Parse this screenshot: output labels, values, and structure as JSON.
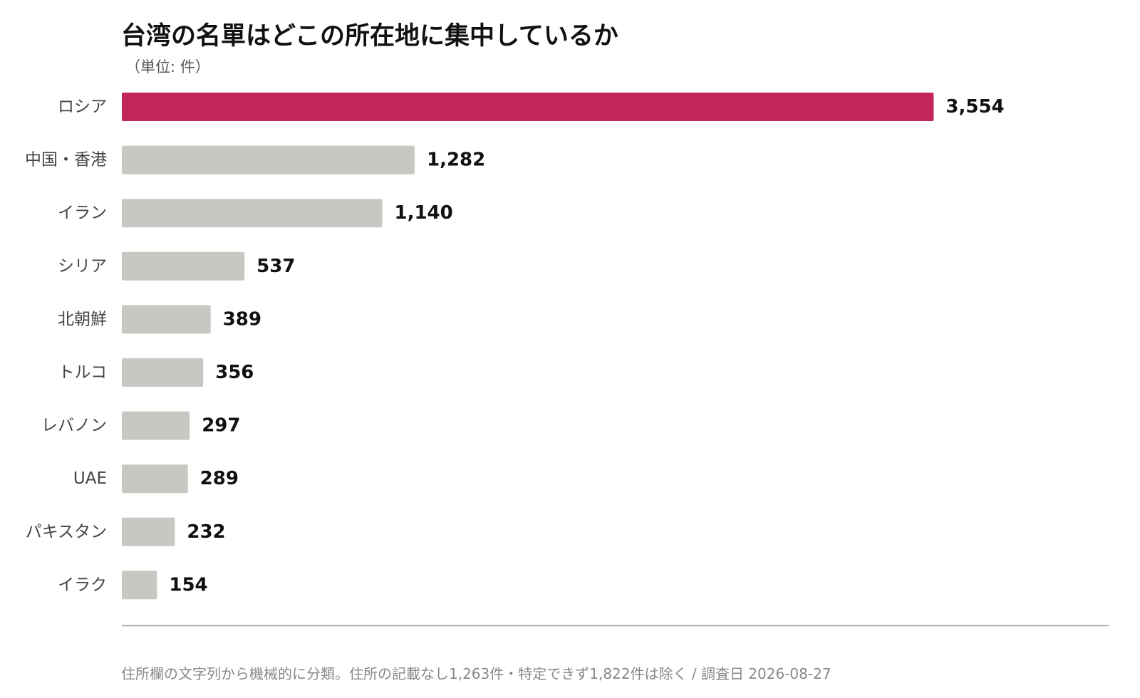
{
  "chart_data": {
    "type": "bar",
    "orientation": "horizontal",
    "title": "台湾の名單はどこの所在地に集中しているか",
    "subtitle": "（単位: 件）",
    "categories": [
      "ロシア",
      "中国・香港",
      "イラン",
      "シリア",
      "北朝鮮",
      "トルコ",
      "レバノン",
      "UAE",
      "パキスタン",
      "イラク"
    ],
    "values": [
      3554,
      1282,
      1140,
      537,
      389,
      356,
      297,
      289,
      232,
      154
    ],
    "value_labels": [
      "3,554",
      "1,282",
      "1,140",
      "537",
      "389",
      "356",
      "297",
      "289",
      "232",
      "154"
    ],
    "highlight_index": 0,
    "highlight_color": "#c2255c",
    "bar_color": "#c8c8c3",
    "axis_color": "#999999",
    "xlim": [
      0,
      4320
    ],
    "grid": false,
    "legend": "none",
    "footnote": "住所欄の文字列から機械的に分類。住所の記載なし1,263件・特定できず1,822件は除く / 調査日 2026-08-27"
  }
}
